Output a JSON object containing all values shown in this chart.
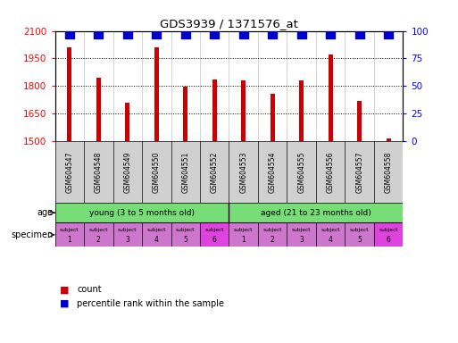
{
  "title": "GDS3939 / 1371576_at",
  "samples": [
    "GSM604547",
    "GSM604548",
    "GSM604549",
    "GSM604550",
    "GSM604551",
    "GSM604552",
    "GSM604553",
    "GSM604554",
    "GSM604555",
    "GSM604556",
    "GSM604557",
    "GSM604558"
  ],
  "counts": [
    2010,
    1845,
    1710,
    2010,
    1795,
    1835,
    1830,
    1760,
    1830,
    1970,
    1720,
    1515
  ],
  "percentile_ranks": [
    97,
    97,
    97,
    97,
    97,
    97,
    97,
    97,
    97,
    97,
    97,
    97
  ],
  "bar_color": "#cc0000",
  "dot_color": "#0000cc",
  "ylim_left": [
    1500,
    2100
  ],
  "ylim_right": [
    0,
    100
  ],
  "yticks_left": [
    1500,
    1650,
    1800,
    1950,
    2100
  ],
  "yticks_right": [
    0,
    25,
    50,
    75,
    100
  ],
  "age_group_young_label": "young (3 to 5 months old)",
  "age_group_aged_label": "aged (21 to 23 months old)",
  "age_group_color": "#77dd77",
  "spec_color_normal": "#cc77cc",
  "spec_color_highlight": "#dd44dd",
  "age_label": "age",
  "specimen_label": "specimen",
  "legend_count_label": "count",
  "legend_percentile_label": "percentile rank within the sample",
  "bar_width": 0.15,
  "dot_size": 55,
  "n_samples": 12,
  "young_count": 6,
  "aged_count": 6,
  "spec_numbers": [
    "1",
    "2",
    "3",
    "4",
    "5",
    "6",
    "1",
    "2",
    "3",
    "4",
    "5",
    "6"
  ],
  "spec_highlights": [
    false,
    false,
    false,
    false,
    false,
    true,
    false,
    false,
    false,
    false,
    false,
    true
  ]
}
